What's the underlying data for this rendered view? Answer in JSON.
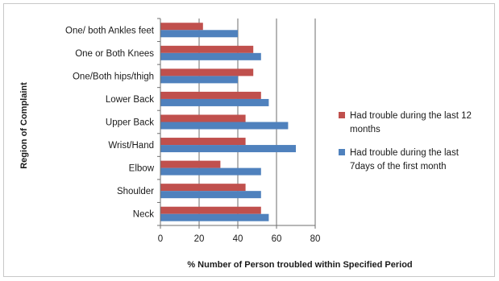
{
  "chart_data": {
    "type": "bar",
    "orientation": "horizontal",
    "categories": [
      "One/ both Ankles feet",
      "One or Both Knees",
      "One/Both hips/thigh",
      "Lower Back",
      "Upper Back",
      "Wrist/Hand",
      "Elbow",
      "Shoulder",
      "Neck"
    ],
    "series": [
      {
        "name": "Had trouble during the last 12 months",
        "color": "#c0504d",
        "values": [
          22,
          48,
          48,
          52,
          44,
          44,
          31,
          44,
          52
        ]
      },
      {
        "name": "Had trouble during the last 7days of the first month",
        "color": "#4f81bd",
        "values": [
          40,
          52,
          40,
          56,
          66,
          70,
          52,
          52,
          56
        ]
      }
    ],
    "xlabel": "% Number of Person troubled within Specified Period",
    "ylabel": "Region of Complaint",
    "xlim": [
      0,
      80
    ],
    "xticks": [
      "0",
      "20",
      "40",
      "60",
      "80"
    ],
    "grid": "vertical major gridlines",
    "legend_position": "right",
    "legend": [
      {
        "lines": [
          "Had trouble during the last 12",
          "months"
        ]
      },
      {
        "lines": [
          "Had trouble during the last",
          "7days of the first month"
        ]
      }
    ]
  }
}
